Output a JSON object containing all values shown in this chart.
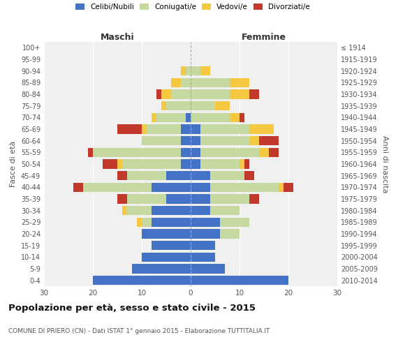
{
  "age_groups": [
    "0-4",
    "5-9",
    "10-14",
    "15-19",
    "20-24",
    "25-29",
    "30-34",
    "35-39",
    "40-44",
    "45-49",
    "50-54",
    "55-59",
    "60-64",
    "65-69",
    "70-74",
    "75-79",
    "80-84",
    "85-89",
    "90-94",
    "95-99",
    "100+"
  ],
  "birth_years": [
    "2010-2014",
    "2005-2009",
    "2000-2004",
    "1995-1999",
    "1990-1994",
    "1985-1989",
    "1980-1984",
    "1975-1979",
    "1970-1974",
    "1965-1969",
    "1960-1964",
    "1955-1959",
    "1950-1954",
    "1945-1949",
    "1940-1944",
    "1935-1939",
    "1930-1934",
    "1925-1929",
    "1920-1924",
    "1915-1919",
    "≤ 1914"
  ],
  "colors": {
    "celibe": "#4472c4",
    "coniugato": "#c5d9a0",
    "vedovo": "#f5c842",
    "divorziato": "#c0392b"
  },
  "male": {
    "celibe": [
      20,
      12,
      10,
      8,
      10,
      8,
      8,
      5,
      8,
      5,
      2,
      2,
      2,
      2,
      1,
      0,
      0,
      0,
      0,
      0,
      0
    ],
    "coniugato": [
      0,
      0,
      0,
      0,
      0,
      2,
      5,
      8,
      14,
      8,
      12,
      18,
      8,
      7,
      6,
      5,
      4,
      2,
      1,
      0,
      0
    ],
    "vedovo": [
      0,
      0,
      0,
      0,
      0,
      1,
      1,
      0,
      0,
      0,
      1,
      0,
      0,
      1,
      1,
      1,
      2,
      2,
      1,
      0,
      0
    ],
    "divorziato": [
      0,
      0,
      0,
      0,
      0,
      0,
      0,
      2,
      2,
      2,
      3,
      1,
      0,
      5,
      0,
      0,
      1,
      0,
      0,
      0,
      0
    ]
  },
  "female": {
    "nubile": [
      20,
      7,
      5,
      5,
      6,
      6,
      4,
      4,
      4,
      4,
      2,
      2,
      2,
      2,
      0,
      0,
      0,
      0,
      0,
      0,
      0
    ],
    "coniugata": [
      0,
      0,
      0,
      0,
      4,
      6,
      6,
      8,
      14,
      7,
      8,
      12,
      10,
      10,
      8,
      5,
      8,
      8,
      2,
      0,
      0
    ],
    "vedova": [
      0,
      0,
      0,
      0,
      0,
      0,
      0,
      0,
      1,
      0,
      1,
      2,
      2,
      5,
      2,
      3,
      4,
      4,
      2,
      0,
      0
    ],
    "divorziata": [
      0,
      0,
      0,
      0,
      0,
      0,
      0,
      2,
      2,
      2,
      1,
      2,
      4,
      0,
      1,
      0,
      2,
      0,
      0,
      0,
      0
    ]
  },
  "xlim": 30,
  "title": "Popolazione per età, sesso e stato civile - 2015",
  "subtitle": "COMUNE DI PRIERO (CN) - Dati ISTAT 1° gennaio 2015 - Elaborazione TUTTITALIA.IT",
  "xlabel_left": "Maschi",
  "xlabel_right": "Femmine",
  "ylabel_left": "Fasce di età",
  "ylabel_right": "Anni di nascita",
  "background_color": "#ffffff",
  "plot_background": "#f0f0f0"
}
